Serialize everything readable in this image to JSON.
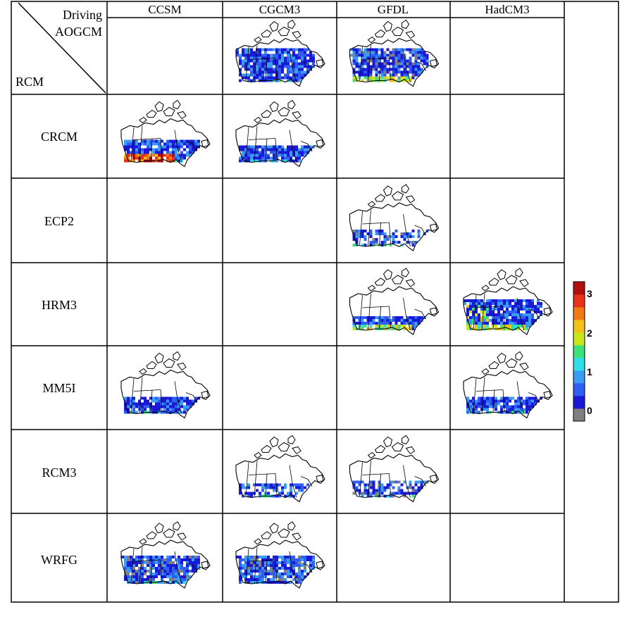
{
  "corner": {
    "driving": "Driving",
    "aogcm": "AOGCM",
    "rcm": "RCM"
  },
  "columns": [
    "CCSM",
    "CGCM3",
    "GFDL",
    "HadCM3"
  ],
  "rows": [
    "CRCM",
    "ECP2",
    "HRM3",
    "MM5I",
    "RCM3",
    "WRFG"
  ],
  "driving_maps": [
    {
      "column": 1,
      "pattern": "blue",
      "gray": false
    },
    {
      "column": 2,
      "pattern": "blue-southwarm",
      "gray": true
    }
  ],
  "cells": [
    {
      "row": 0,
      "column": 0,
      "pattern": "hot-south"
    },
    {
      "row": 0,
      "column": 1,
      "pattern": "south-band"
    },
    {
      "row": 1,
      "column": 2,
      "pattern": "sparse-gray"
    },
    {
      "row": 2,
      "column": 2,
      "pattern": "south-warm"
    },
    {
      "row": 2,
      "column": 3,
      "pattern": "warm-west"
    },
    {
      "row": 3,
      "column": 0,
      "pattern": "south-band"
    },
    {
      "row": 3,
      "column": 3,
      "pattern": "south-band"
    },
    {
      "row": 4,
      "column": 1,
      "pattern": "sparse"
    },
    {
      "row": 4,
      "column": 2,
      "pattern": "sparse-gray"
    },
    {
      "row": 5,
      "column": 0,
      "pattern": "broad-gray"
    },
    {
      "row": 5,
      "column": 1,
      "pattern": "broad-gray"
    }
  ],
  "colorbar": {
    "ticks": [
      "3",
      "2",
      "1",
      "0"
    ],
    "colors": [
      "#808080",
      "#1a1ad6",
      "#2e5ef2",
      "#3a9cf2",
      "#2ee0e6",
      "#3ee07a",
      "#c8e61a",
      "#f2c21a",
      "#f27a14",
      "#e8321a",
      "#b20f0f"
    ]
  }
}
